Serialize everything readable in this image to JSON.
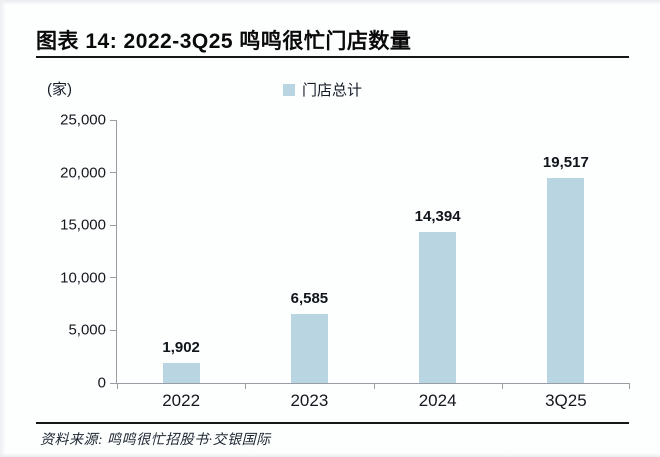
{
  "chart_data": {
    "type": "bar",
    "title": "图表 14: 2022-3Q25 鸣鸣很忙门店数量",
    "unit": "(家)",
    "categories": [
      "2022",
      "2023",
      "2024",
      "3Q25"
    ],
    "series": [
      {
        "name": "门店总计",
        "values": [
          1902,
          6585,
          14394,
          19517
        ]
      }
    ],
    "value_labels": [
      "1,902",
      "6,585",
      "14,394",
      "19,517"
    ],
    "ylim": [
      0,
      25000
    ],
    "yticks": [
      0,
      5000,
      10000,
      15000,
      20000,
      25000
    ],
    "ytick_labels": [
      "0",
      "5,000",
      "10,000",
      "15,000",
      "20,000",
      "25,000"
    ],
    "xlabel": "",
    "ylabel": "(家)",
    "grid": false,
    "legend_position": "top-center",
    "bar_color": "#b8d5e1",
    "axis_color": "#979da2",
    "text_color": "#14181f",
    "source": "资料来源: 鸣鸣很忙招股书·交银国际"
  }
}
